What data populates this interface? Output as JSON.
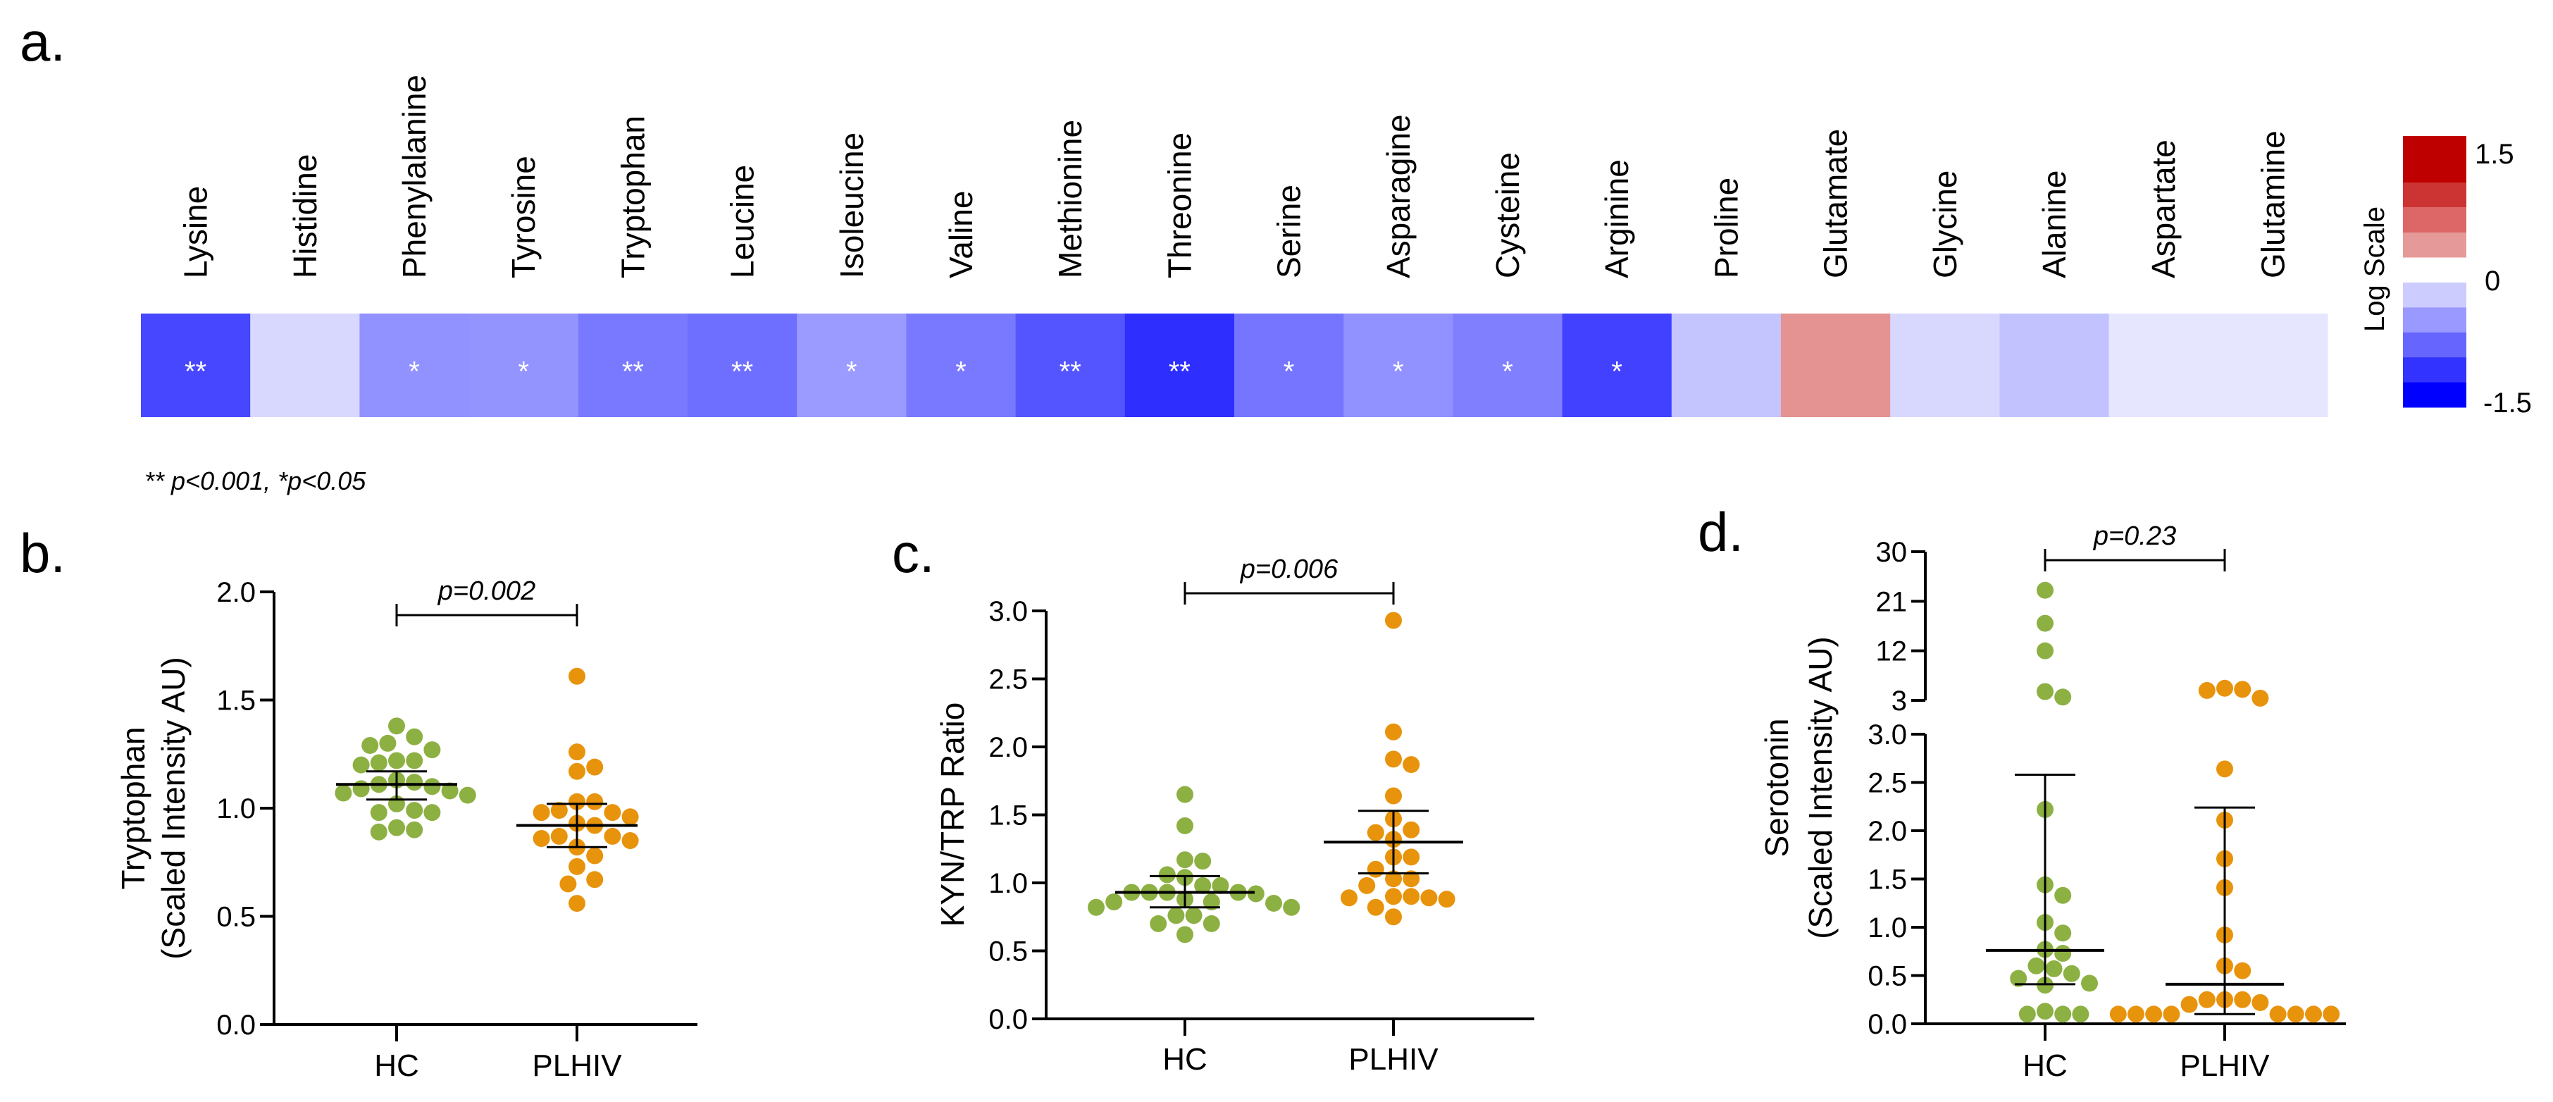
{
  "chart_data": [
    {
      "panel": "a.",
      "type": "heatmap",
      "title": "",
      "categories": [
        "Lysine",
        "Histidine",
        "Phenylalanine",
        "Tyrosine",
        "Tryptophan",
        "Leucine",
        "Isoleucine",
        "Valine",
        "Methionine",
        "Threonine",
        "Serine",
        "Asparagine",
        "Cysteine",
        "Arginine",
        "Proline",
        "Glutamate",
        "Glycine",
        "Alanine",
        "Aspartate",
        "Glutamine"
      ],
      "values": [
        -1.08,
        -0.23,
        -0.65,
        -0.63,
        -0.79,
        -0.85,
        -0.59,
        -0.79,
        -1.0,
        -1.23,
        -0.81,
        -0.65,
        -0.75,
        -1.12,
        -0.35,
        0.64,
        -0.23,
        -0.36,
        -0.15,
        -0.15
      ],
      "significance": [
        "**",
        "",
        "*",
        "*",
        "**",
        "**",
        "*",
        "*",
        "**",
        "**",
        "*",
        "*",
        "*",
        "*",
        "",
        "",
        "",
        "",
        "",
        ""
      ],
      "colorbar": {
        "label": "Log Scale",
        "ticks": [
          "1.5",
          "0",
          "-1.5"
        ],
        "range": [
          -1.5,
          1.5
        ],
        "positive_bins": [
          "#bf0000",
          "#cc3333",
          "#dd6666",
          "#e69999"
        ],
        "negative_bins": [
          "#ccccff",
          "#9999ff",
          "#6666ff",
          "#3333ff",
          "#0000ff"
        ]
      },
      "note": "** p<0.001, *p<0.05"
    },
    {
      "panel": "b.",
      "type": "scatter",
      "ylabel_line1": "Tryptophan",
      "ylabel_line2": "(Scaled Intensity AU)",
      "categories": [
        "HC",
        "PLHIV"
      ],
      "ylim": [
        0,
        2.0
      ],
      "yticks": [
        "0.0",
        "0.5",
        "1.0",
        "1.5",
        "2.0"
      ],
      "series": [
        {
          "name": "HC",
          "color": "#8db043",
          "values": [
            1.38,
            1.33,
            1.3,
            1.29,
            1.27,
            1.22,
            1.21,
            1.22,
            1.2,
            1.12,
            1.13,
            1.11,
            1.1,
            1.09,
            1.08,
            1.07,
            1.06,
            1.02,
            0.98,
            0.98,
            0.99,
            0.91,
            0.9,
            0.89
          ],
          "center": 1.11,
          "err_low": 1.04,
          "err_high": 1.17
        },
        {
          "name": "PLHIV",
          "color": "#e8930c",
          "values": [
            1.61,
            1.26,
            1.19,
            1.17,
            1.03,
            1.03,
            0.99,
            0.98,
            0.98,
            0.96,
            0.93,
            0.92,
            0.87,
            0.87,
            0.86,
            0.85,
            0.82,
            0.78,
            0.73,
            0.67,
            0.65,
            0.56
          ],
          "center": 0.92,
          "err_low": 0.82,
          "err_high": 1.02
        }
      ],
      "pvalue": "p=0.002"
    },
    {
      "panel": "c.",
      "type": "scatter",
      "ylabel_line1": "KYN/TRP Ratio",
      "categories": [
        "HC",
        "PLHIV"
      ],
      "ylim": [
        0,
        3.0
      ],
      "yticks": [
        "0.0",
        "0.5",
        "1.0",
        "1.5",
        "2.0",
        "2.5",
        "3.0"
      ],
      "series": [
        {
          "name": "HC",
          "color": "#8db043",
          "values": [
            1.65,
            1.42,
            1.17,
            1.16,
            1.06,
            1.04,
            0.98,
            0.98,
            0.93,
            0.93,
            0.93,
            0.93,
            0.92,
            0.88,
            0.86,
            0.86,
            0.85,
            0.82,
            0.82,
            0.76,
            0.76,
            0.7,
            0.7,
            0.62
          ],
          "center": 0.93,
          "err_low": 0.82,
          "err_high": 1.05
        },
        {
          "name": "PLHIV",
          "color": "#e8930c",
          "values": [
            2.93,
            2.11,
            1.91,
            1.87,
            1.64,
            1.47,
            1.39,
            1.37,
            1.32,
            1.19,
            1.19,
            1.1,
            1.03,
            1.03,
            0.98,
            0.9,
            0.9,
            0.89,
            0.89,
            0.88,
            0.82,
            0.75
          ],
          "center": 1.3,
          "err_low": 1.07,
          "err_high": 1.53
        }
      ],
      "pvalue": "p=0.006"
    },
    {
      "panel": "d.",
      "type": "scatter",
      "ylabel_line1": "Serotonin",
      "ylabel_line2": "(Scaled Intensity AU)",
      "categories": [
        "HC",
        "PLHIV"
      ],
      "ylim": [
        0,
        30
      ],
      "axis_break": 3,
      "yticks_lower": [
        "0.0",
        "0.5",
        "1.0",
        "1.5",
        "2.0",
        "2.5",
        "3.0"
      ],
      "yticks_upper": [
        "3",
        "12",
        "21",
        "30"
      ],
      "series": [
        {
          "name": "HC",
          "color": "#8db043",
          "values": [
            23,
            17,
            12,
            4.6,
            3.6,
            2.22,
            1.44,
            1.33,
            1.05,
            0.94,
            0.77,
            0.73,
            0.6,
            0.57,
            0.52,
            0.47,
            0.42,
            0.4,
            0.13,
            0.1,
            0.1,
            0.1
          ],
          "center": 0.76,
          "err_low": 0.41,
          "err_high": 2.58
        },
        {
          "name": "PLHIV",
          "color": "#e8930c",
          "values": [
            5.2,
            5.0,
            4.8,
            3.4,
            2.64,
            2.11,
            1.71,
            1.41,
            0.92,
            0.6,
            0.55,
            0.25,
            0.25,
            0.25,
            0.22,
            0.2,
            0.1,
            0.1,
            0.1,
            0.1,
            0.1,
            0.1,
            0.1,
            0.1
          ],
          "center": 0.41,
          "err_low": 0.1,
          "err_high": 2.24
        }
      ],
      "pvalue": "p=0.23"
    }
  ]
}
